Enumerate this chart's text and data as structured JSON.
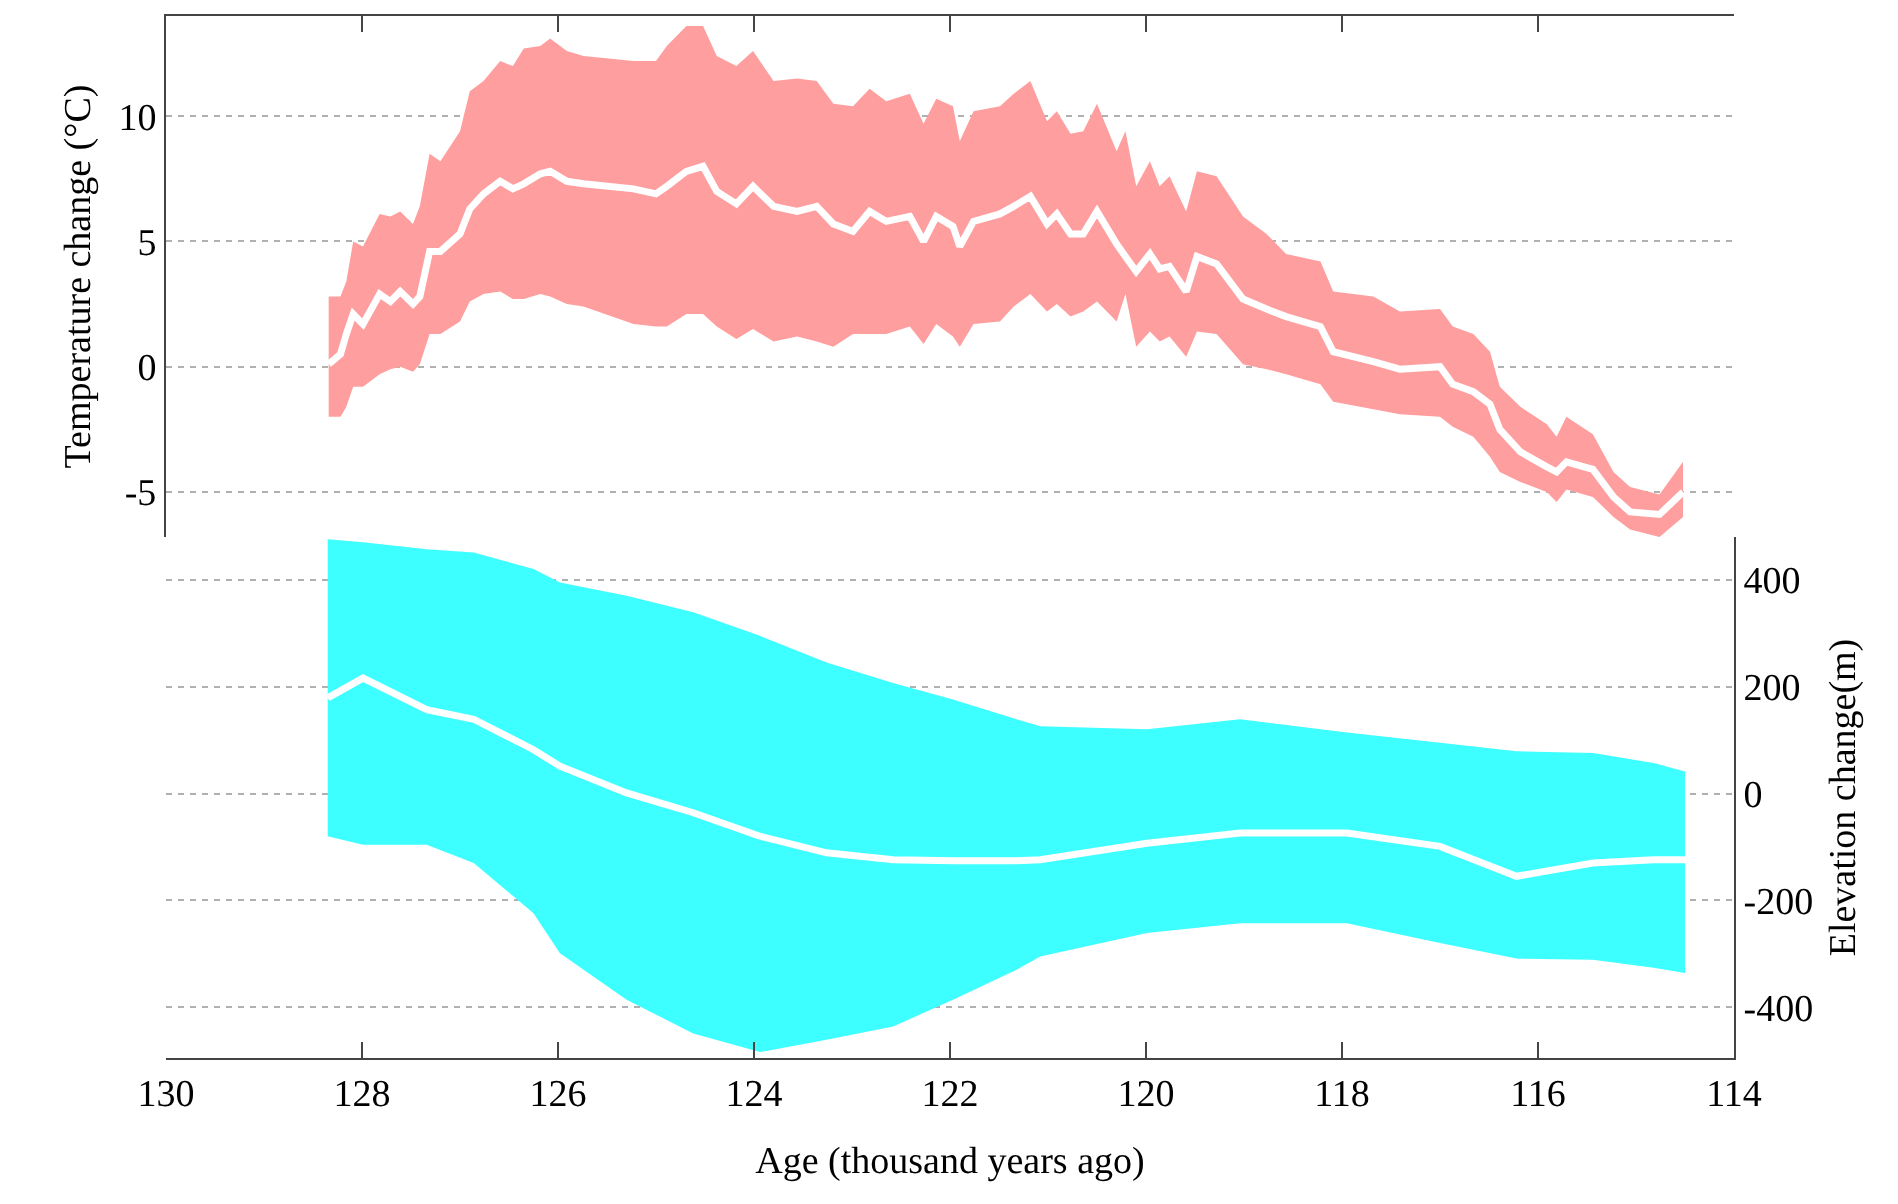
{
  "chart_data": [
    {
      "type": "line",
      "ylabel": "Temperature change (°C)",
      "xlim": [
        130,
        114
      ],
      "xticks": [
        130,
        128,
        126,
        124,
        122,
        120,
        118,
        116,
        114
      ],
      "ylim": [
        -6.8,
        14
      ],
      "yticks": [
        -5,
        0,
        5,
        10
      ],
      "tick_labels": "y",
      "grid": "y",
      "x": [
        128.34,
        128.22,
        128.16,
        128.09,
        127.99,
        127.82,
        127.71,
        127.61,
        127.48,
        127.41,
        127.31,
        127.2,
        127.0,
        126.9,
        126.76,
        126.59,
        126.46,
        126.35,
        126.18,
        126.08,
        125.91,
        125.74,
        125.23,
        125.0,
        124.89,
        124.69,
        124.52,
        124.38,
        124.18,
        124.01,
        123.8,
        123.56,
        123.36,
        123.19,
        122.99,
        122.82,
        122.65,
        122.41,
        122.27,
        122.14,
        121.97,
        121.9,
        121.76,
        121.49,
        121.35,
        121.18,
        121.01,
        120.91,
        120.77,
        120.64,
        120.5,
        120.3,
        120.21,
        120.1,
        119.96,
        119.86,
        119.76,
        119.59,
        119.48,
        119.28,
        119.01,
        118.77,
        118.57,
        118.22,
        118.09,
        117.68,
        117.41,
        117.0,
        116.87,
        116.66,
        116.49,
        116.39,
        116.18,
        115.91,
        115.81,
        115.71,
        115.44,
        115.23,
        115.06,
        114.76,
        114.52
      ],
      "series": [
        {
          "color": "#ffffff",
          "values": [
            0.1,
            0.5,
            1.3,
            2.1,
            1.7,
            2.9,
            2.6,
            3.0,
            2.5,
            2.8,
            4.6,
            4.6,
            5.3,
            6.3,
            6.9,
            7.4,
            7.1,
            7.3,
            7.7,
            7.8,
            7.4,
            7.3,
            7.1,
            6.9,
            7.2,
            7.8,
            8.0,
            7.0,
            6.5,
            7.2,
            6.4,
            6.2,
            6.4,
            5.7,
            5.4,
            6.2,
            5.8,
            6.0,
            5.0,
            6.0,
            5.6,
            4.8,
            5.8,
            6.1,
            6.4,
            6.8,
            5.7,
            6.1,
            5.3,
            5.3,
            6.2,
            4.9,
            4.4,
            3.8,
            4.5,
            3.9,
            4.0,
            3.0,
            4.4,
            4.1,
            2.7,
            2.3,
            2.0,
            1.6,
            0.6,
            0.2,
            -0.1,
            0.0,
            -0.7,
            -1.0,
            -1.5,
            -2.5,
            -3.4,
            -4.0,
            -4.2,
            -3.8,
            -4.1,
            -5.2,
            -5.8,
            -5.9,
            -5.0
          ],
          "lower": [
            -2.0,
            -2.0,
            -1.6,
            -0.8,
            -0.8,
            -0.3,
            -0.1,
            0.0,
            -0.2,
            0.1,
            1.3,
            1.3,
            1.8,
            2.6,
            2.9,
            3.0,
            2.7,
            2.7,
            2.9,
            2.8,
            2.5,
            2.4,
            1.7,
            1.6,
            1.6,
            2.1,
            2.1,
            1.6,
            1.1,
            1.5,
            1.0,
            1.2,
            1.0,
            0.8,
            1.3,
            1.3,
            1.3,
            1.6,
            0.9,
            1.7,
            1.2,
            0.8,
            1.7,
            1.8,
            2.4,
            2.9,
            2.2,
            2.5,
            2.0,
            2.2,
            2.6,
            1.8,
            2.9,
            0.8,
            1.4,
            1.0,
            1.2,
            0.4,
            1.4,
            1.3,
            0.1,
            -0.1,
            -0.3,
            -0.7,
            -1.4,
            -1.7,
            -1.9,
            -2.0,
            -2.4,
            -2.8,
            -3.6,
            -4.2,
            -4.6,
            -5.0,
            -5.4,
            -4.9,
            -5.2,
            -6.0,
            -6.5,
            -6.8,
            -6.0
          ],
          "upper": [
            2.8,
            2.8,
            3.4,
            5.0,
            4.8,
            6.1,
            6.0,
            6.2,
            5.7,
            6.4,
            8.5,
            8.2,
            9.4,
            11.0,
            11.4,
            12.2,
            12.0,
            12.7,
            12.8,
            13.1,
            12.6,
            12.4,
            12.2,
            12.2,
            12.8,
            13.6,
            13.6,
            12.4,
            12.0,
            12.6,
            11.4,
            11.5,
            11.4,
            10.5,
            10.4,
            11.1,
            10.6,
            10.9,
            9.7,
            10.7,
            10.4,
            9.0,
            10.2,
            10.4,
            10.9,
            11.4,
            9.8,
            10.2,
            9.3,
            9.4,
            10.5,
            8.6,
            9.4,
            7.2,
            8.2,
            7.2,
            7.6,
            6.2,
            7.8,
            7.6,
            6.0,
            5.3,
            4.5,
            4.2,
            3.0,
            2.8,
            2.2,
            2.3,
            1.6,
            1.3,
            0.6,
            -0.8,
            -1.6,
            -2.3,
            -2.8,
            -2.0,
            -2.7,
            -4.2,
            -4.8,
            -5.1,
            -3.8
          ]
        }
      ]
    },
    {
      "type": "line",
      "xlabel": "Age (thousand years ago)",
      "y2label": "Elevation change(m)",
      "xlim": [
        130,
        114
      ],
      "xticks": [
        130,
        128,
        126,
        124,
        122,
        120,
        118,
        116,
        114
      ],
      "y2lim": [
        -495,
        480
      ],
      "y2ticks": [
        -400,
        -200,
        0,
        200,
        400
      ],
      "grid": "y",
      "x": [
        128.35,
        127.99,
        127.34,
        126.86,
        126.25,
        125.98,
        125.3,
        124.62,
        123.94,
        123.26,
        122.58,
        121.97,
        121.32,
        121.08,
        119.99,
        119.04,
        117.95,
        117.0,
        116.22,
        115.44,
        114.82,
        114.5
      ],
      "series": [
        {
          "axis": "y2",
          "color": "#ffffff",
          "values": [
            179,
            216,
            157,
            139,
            82,
            51,
            1,
            -36,
            -80,
            -111,
            -124,
            -126,
            -126,
            -124,
            -93,
            -74,
            -74,
            -99,
            -155,
            -130,
            -124,
            -124
          ],
          "lower": [
            -80,
            -96,
            -96,
            -130,
            -224,
            -299,
            -386,
            -449,
            -484,
            -461,
            -436,
            -386,
            -330,
            -305,
            -261,
            -243,
            -243,
            -280,
            -309,
            -311,
            -326,
            -336
          ],
          "upper": [
            476,
            470,
            457,
            451,
            420,
            395,
            370,
            339,
            295,
            245,
            207,
            176,
            139,
            126,
            120,
            139,
            114,
            95,
            79,
            76,
            57,
            41
          ]
        }
      ]
    }
  ]
}
